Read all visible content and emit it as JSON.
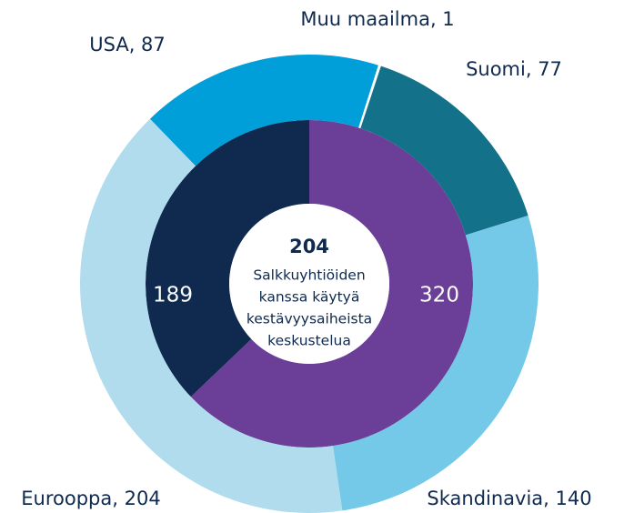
{
  "chart_data": {
    "type": "nested-donut",
    "rings": [
      {
        "values": [
          320,
          189
        ],
        "colors": [
          "#6b3e98",
          "#0f2a4e"
        ]
      },
      {
        "values": [
          87,
          1,
          77,
          140,
          204
        ],
        "value_labels": [
          "USA, 87",
          "Muu maailma, 1",
          "Suomi, 77",
          "Skandinavia, 140",
          "Eurooppa, 204"
        ],
        "colors": [
          "#009fd9",
          "#ffffff",
          "#14718a",
          "#73c9e7",
          "#b1dcee"
        ]
      }
    ],
    "center_value": "204",
    "center_lines": [
      "Salkkuyhtiöiden",
      "kanssa käytyä",
      "kestävyysaiheista",
      "keskustelua"
    ]
  }
}
